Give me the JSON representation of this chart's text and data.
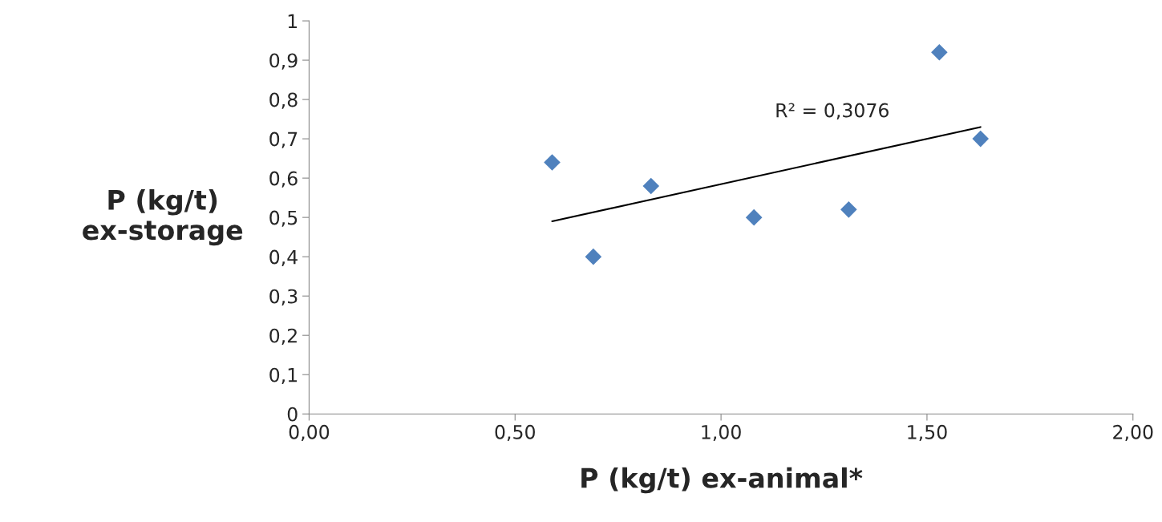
{
  "chart_data": {
    "type": "scatter",
    "xlabel": "P (kg/t) ex-animal*",
    "ylabel": "P (kg/t)\nex-storage",
    "grid": false,
    "legend": false,
    "series": [
      {
        "marker": "diamond",
        "color": "#4f81bd",
        "x": [
          0.59,
          0.69,
          0.83,
          1.08,
          1.31,
          1.53,
          1.63
        ],
        "values": [
          0.64,
          0.4,
          0.58,
          0.5,
          0.52,
          0.92,
          0.7
        ]
      },
      {
        "type": "line",
        "color": "#000000",
        "x": [
          0.59,
          1.63
        ],
        "values": [
          0.49,
          0.73
        ]
      }
    ],
    "annotations": [
      "R² = 0,3076"
    ],
    "xlim": [
      0,
      2
    ],
    "ylim": [
      0,
      1
    ],
    "xticks": [
      {
        "value": 0,
        "label": "0,00"
      },
      {
        "value": 0.5,
        "label": "0,50"
      },
      {
        "value": 1,
        "label": "1,00"
      },
      {
        "value": 1.5,
        "label": "1,50"
      },
      {
        "value": 2,
        "label": "2,00"
      }
    ],
    "yticks": [
      0,
      {
        "value": 0.1,
        "label": "0,1"
      },
      {
        "value": 0.2,
        "label": "0,2"
      },
      {
        "value": 0.3,
        "label": "0,3"
      },
      {
        "value": 0.4,
        "label": "0,4"
      },
      {
        "value": 0.5,
        "label": "0,5"
      },
      {
        "value": 0.6,
        "label": "0,6"
      },
      {
        "value": 0.7,
        "label": "0,7"
      },
      {
        "value": 0.8,
        "label": "0,8"
      },
      {
        "value": 0.9,
        "label": "0,9"
      },
      1
    ]
  }
}
